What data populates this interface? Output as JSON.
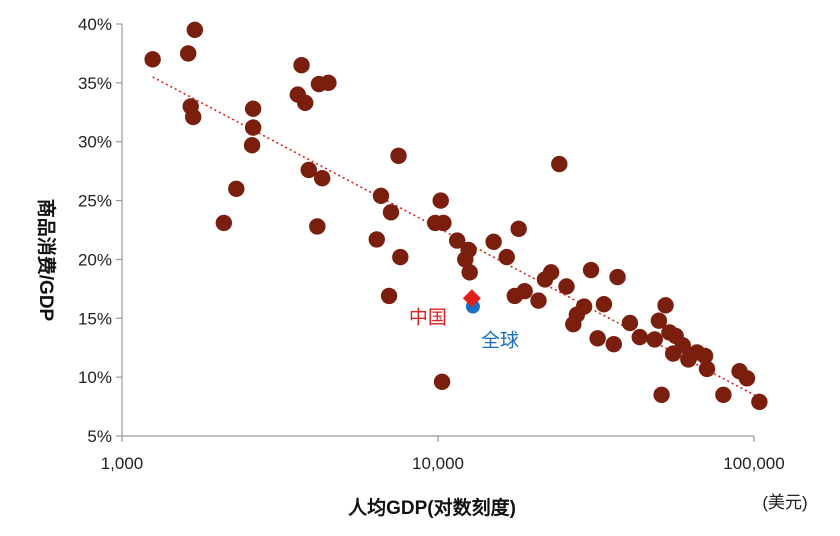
{
  "chart_data": {
    "type": "scatter",
    "xscale": "log",
    "xlim": [
      1000,
      100000
    ],
    "ylim": [
      5,
      40
    ],
    "xlabel": "人均GDP(对数刻度)",
    "ylabel": "商品消费/GDP",
    "x_unit": "(美元)",
    "x_ticks": [
      "1,000",
      "10,000",
      "100,000"
    ],
    "y_ticks": [
      "5%",
      "10%",
      "15%",
      "20%",
      "25%",
      "30%",
      "35%",
      "40%"
    ],
    "colors": {
      "points": "#7a1f0e",
      "trend": "#e0201c",
      "china": "#e0201c",
      "world": "#1a6fc2"
    },
    "trendline": {
      "style": "dotted",
      "x": [
        1250,
        105000
      ],
      "y": [
        35.5,
        8.2
      ]
    },
    "points": [
      [
        1250,
        37.0
      ],
      [
        1620,
        37.5
      ],
      [
        1700,
        39.5
      ],
      [
        1650,
        33.0
      ],
      [
        1680,
        32.1
      ],
      [
        2100,
        23.1
      ],
      [
        2300,
        26.0
      ],
      [
        2600,
        32.8
      ],
      [
        2600,
        31.2
      ],
      [
        2580,
        29.7
      ],
      [
        3600,
        34.0
      ],
      [
        3700,
        36.5
      ],
      [
        3800,
        33.3
      ],
      [
        4200,
        34.9
      ],
      [
        4500,
        35.0
      ],
      [
        3900,
        27.6
      ],
      [
        4300,
        26.9
      ],
      [
        4150,
        22.8
      ],
      [
        6400,
        21.7
      ],
      [
        6600,
        25.4
      ],
      [
        7100,
        24.0
      ],
      [
        7000,
        16.9
      ],
      [
        7500,
        28.8
      ],
      [
        7600,
        20.2
      ],
      [
        9800,
        23.1
      ],
      [
        10200,
        25.0
      ],
      [
        10400,
        23.1
      ],
      [
        10300,
        9.6
      ],
      [
        11500,
        21.6
      ],
      [
        12200,
        20.0
      ],
      [
        12500,
        20.8
      ],
      [
        12600,
        18.9
      ],
      [
        15000,
        21.5
      ],
      [
        16500,
        20.2
      ],
      [
        18000,
        22.6
      ],
      [
        17500,
        16.9
      ],
      [
        18800,
        17.3
      ],
      [
        20800,
        16.5
      ],
      [
        21800,
        18.3
      ],
      [
        22800,
        18.9
      ],
      [
        24200,
        28.1
      ],
      [
        25500,
        17.7
      ],
      [
        26800,
        14.5
      ],
      [
        27500,
        15.3
      ],
      [
        29000,
        16.0
      ],
      [
        30500,
        19.1
      ],
      [
        32000,
        13.3
      ],
      [
        33500,
        16.2
      ],
      [
        36000,
        12.8
      ],
      [
        37000,
        18.5
      ],
      [
        40500,
        14.6
      ],
      [
        43500,
        13.4
      ],
      [
        48500,
        13.2
      ],
      [
        50000,
        14.8
      ],
      [
        51000,
        8.5
      ],
      [
        52500,
        16.1
      ],
      [
        54000,
        13.8
      ],
      [
        55500,
        12.0
      ],
      [
        56500,
        13.5
      ],
      [
        59500,
        12.7
      ],
      [
        62000,
        11.5
      ],
      [
        66000,
        12.1
      ],
      [
        70000,
        11.8
      ],
      [
        71000,
        10.7
      ],
      [
        80000,
        8.5
      ],
      [
        90000,
        10.5
      ],
      [
        95000,
        9.9
      ],
      [
        104000,
        7.9
      ]
    ],
    "highlight": [
      {
        "label": "中国",
        "x": 12800,
        "y": 16.7,
        "marker": "diamond"
      },
      {
        "label": "全球",
        "x": 12900,
        "y": 16.0,
        "marker": "circle"
      }
    ]
  }
}
